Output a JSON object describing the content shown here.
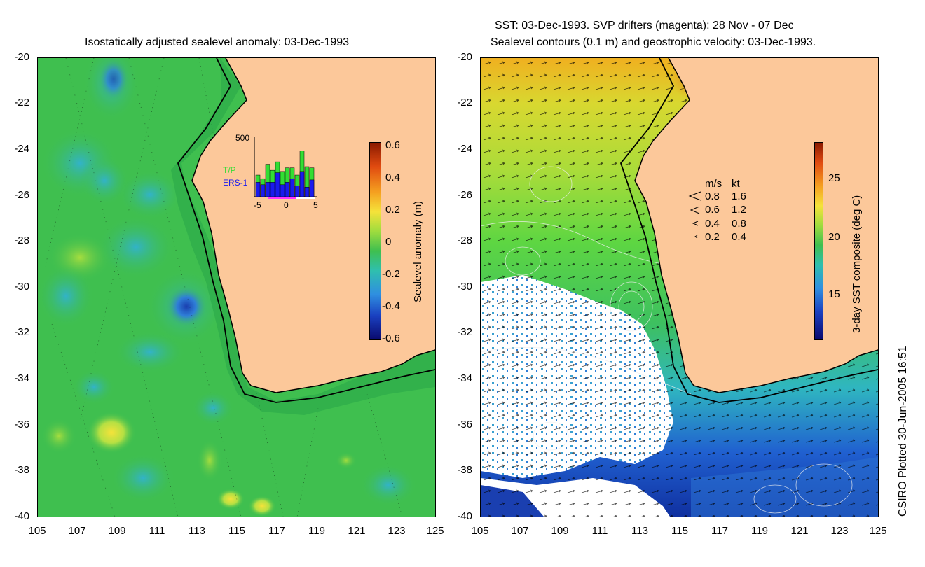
{
  "left_panel": {
    "title": "Isostatically adjusted sealevel anomaly: 03-Dec-1993",
    "y_ticks": [
      "-20",
      "-22",
      "-24",
      "-26",
      "-28",
      "-30",
      "-32",
      "-34",
      "-36",
      "-38",
      "-40"
    ],
    "x_ticks": [
      "105",
      "107",
      "109",
      "111",
      "113",
      "115",
      "117",
      "119",
      "121",
      "123",
      "125"
    ],
    "colorbar": {
      "label": "Sealevel anomaly (m)",
      "ticks": [
        "0.6",
        "0.4",
        "0.2",
        "0",
        "-0.2",
        "-0.4",
        "-0.6"
      ]
    },
    "inset": {
      "y_label": "500",
      "x_ticks": [
        "-5",
        "0",
        "5"
      ],
      "legend_tp": "T/P",
      "legend_ers": "ERS-1",
      "colors": {
        "tp": "#33dd33",
        "ers": "#1a1aee"
      },
      "tp_values": [
        180,
        150,
        270,
        220,
        290,
        210,
        240,
        240,
        180,
        380,
        250,
        240
      ],
      "ers_values": [
        120,
        100,
        120,
        120,
        200,
        100,
        120,
        150,
        90,
        210,
        80,
        140
      ]
    }
  },
  "right_panel": {
    "title_line1": "SST: 03-Dec-1993. SVP drifters (magenta): 28 Nov - 07 Dec",
    "title_line2": "Sealevel contours (0.1 m) and geostrophic velocity: 03-Dec-1993.",
    "y_ticks": [
      "-20",
      "-22",
      "-24",
      "-26",
      "-28",
      "-30",
      "-32",
      "-34",
      "-36",
      "-38",
      "-40"
    ],
    "x_ticks": [
      "105",
      "107",
      "109",
      "111",
      "113",
      "115",
      "117",
      "119",
      "121",
      "123",
      "125"
    ],
    "colorbar": {
      "label": "3-day SST composite (deg C)",
      "ticks": [
        "25",
        "20",
        "15"
      ]
    },
    "velocity_legend": {
      "header_ms": "m/s",
      "header_kt": "kt",
      "rows": [
        {
          "ms": "0.8",
          "kt": "1.6"
        },
        {
          "ms": "0.6",
          "kt": "1.2"
        },
        {
          "ms": "0.4",
          "kt": "0.8"
        },
        {
          "ms": "0.2",
          "kt": "0.4"
        }
      ]
    }
  },
  "footer": "CSIRO Plotted 30-Jun-2005 16:51",
  "colors": {
    "land": "#fcc89a",
    "ocean_green": "#3fbf4f",
    "sst_green": "#5ed642"
  }
}
